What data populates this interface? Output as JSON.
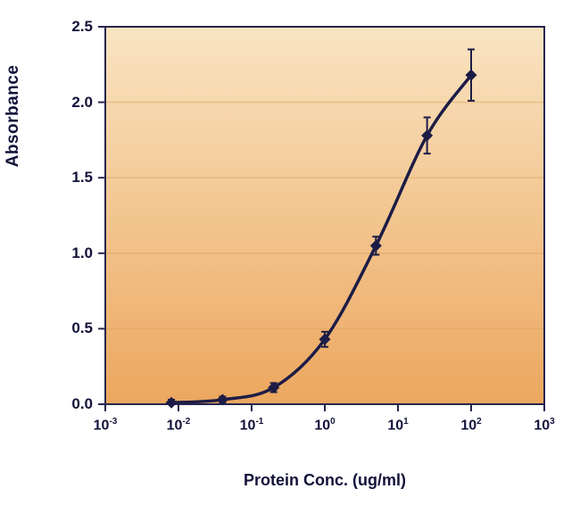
{
  "chart_data": {
    "type": "line",
    "title": "",
    "xlabel": "Protein Conc. (ug/ml)",
    "ylabel": "Absorbance",
    "x_scale": "log",
    "xlim_exponents": [
      -3,
      3
    ],
    "ylim": [
      0,
      2.5
    ],
    "y_tick_labels": [
      "0.0",
      "0.5",
      "1.0",
      "1.5",
      "2.0",
      "2.5"
    ],
    "x_tick_base": "10",
    "x_tick_exponents": [
      "-3",
      "-2",
      "-1",
      "0",
      "1",
      "2",
      "3"
    ],
    "grid": true,
    "legend": "none",
    "series": [
      {
        "name": "Absorbance",
        "marker": "diamond",
        "x": [
          0.008,
          0.04,
          0.2,
          1,
          5,
          25,
          100
        ],
        "y": [
          0.01,
          0.03,
          0.11,
          0.43,
          1.05,
          1.78,
          2.18
        ],
        "y_err": [
          0.02,
          0.02,
          0.03,
          0.05,
          0.06,
          0.12,
          0.17
        ]
      }
    ],
    "colors": {
      "line": "#1c1c46",
      "marker": "#1c1c46",
      "axis": "#26264d",
      "text": "#12123a",
      "grid_line": "#d9a360",
      "plot_bg_top": "#f9e4c2",
      "plot_bg_bottom": "#eca75e",
      "page_bg": "#ffffff"
    }
  }
}
